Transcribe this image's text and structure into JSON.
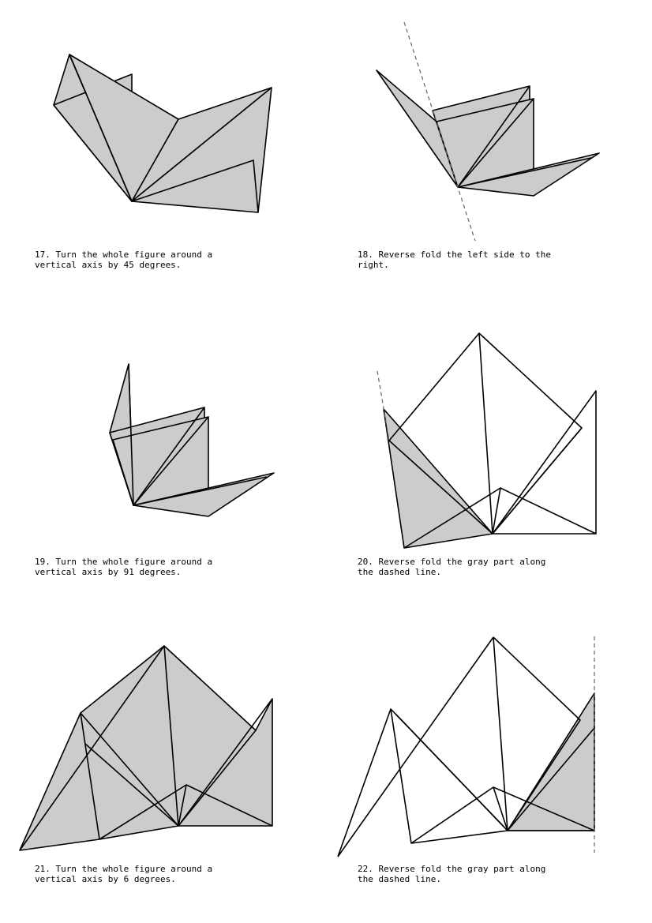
{
  "colors": {
    "fill": "#cccccc",
    "stroke": "#000000",
    "dash": "#666666",
    "background": "#ffffff"
  },
  "steps": [
    {
      "number": "17",
      "line1": "17. Turn the whole figure around a",
      "line2": "vertical axis by 45 degrees."
    },
    {
      "number": "18",
      "line1": "18. Reverse fold the left side to the",
      "line2": "right."
    },
    {
      "number": "19",
      "line1": "19. Turn the whole figure around a",
      "line2": "vertical axis by 91 degrees."
    },
    {
      "number": "20",
      "line1": "20. Reverse fold the gray part along",
      "line2": "the dashed line."
    },
    {
      "number": "21",
      "line1": "21. Turn the whole figure around a",
      "line2": "vertical axis by 6 degrees."
    },
    {
      "number": "22",
      "line1": "22. Reverse fold the gray part along",
      "line2": "the dashed line."
    }
  ]
}
